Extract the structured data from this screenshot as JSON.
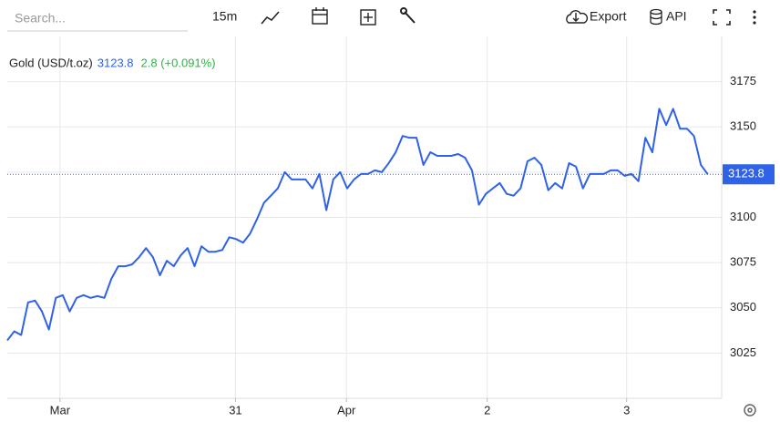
{
  "toolbar": {
    "search_placeholder": "Search...",
    "interval": "15m",
    "export": "Export",
    "api": "API"
  },
  "chart_data": {
    "type": "line",
    "title": "Gold (USD/t.oz)",
    "change": "2.8 (+0.091%)",
    "series": [
      {
        "name": "Gold (USD/t.oz)",
        "color": "#2f62e6",
        "values": [
          3032,
          3037,
          3035,
          3053,
          3054,
          3048,
          3038,
          3055.5,
          3057,
          3048,
          3055.5,
          3057,
          3055.5,
          3056.5,
          3055.5,
          3066,
          3073,
          3073,
          3074,
          3078,
          3083,
          3078,
          3068,
          3076,
          3073,
          3079,
          3083,
          3073,
          3084,
          3081,
          3081,
          3082,
          3089,
          3088,
          3086,
          3091,
          3099,
          3108,
          3112,
          3116,
          3125,
          3121,
          3121,
          3121,
          3116,
          3124,
          3104,
          3121,
          3125,
          3116,
          3121,
          3124,
          3124,
          3126,
          3125,
          3130,
          3136,
          3145,
          3144,
          3144,
          3129,
          3136,
          3134,
          3134,
          3134,
          3135,
          3133,
          3126,
          3107,
          3113,
          3116,
          3119,
          3113,
          3112,
          3116,
          3131,
          3133,
          3129,
          3115,
          3119,
          3116,
          3130,
          3128,
          3116,
          3124,
          3124,
          3124,
          3126,
          3126,
          3123,
          3124,
          3120,
          3144,
          3136,
          3160,
          3151,
          3160,
          3149,
          3149,
          3145,
          3129,
          3123.8
        ]
      }
    ],
    "xlim": [
      0,
      103
    ],
    "xticks": [
      {
        "value": 7.6,
        "label": "Mar"
      },
      {
        "value": 32.9,
        "label": "31"
      },
      {
        "value": 48.9,
        "label": "Apr"
      },
      {
        "value": 69.2,
        "label": "2"
      },
      {
        "value": 89.3,
        "label": "3"
      }
    ],
    "ylim": [
      3000,
      3200
    ],
    "yticks": [
      3025,
      3050,
      3075,
      3100,
      3125,
      3150,
      3175
    ],
    "grid": true
  }
}
